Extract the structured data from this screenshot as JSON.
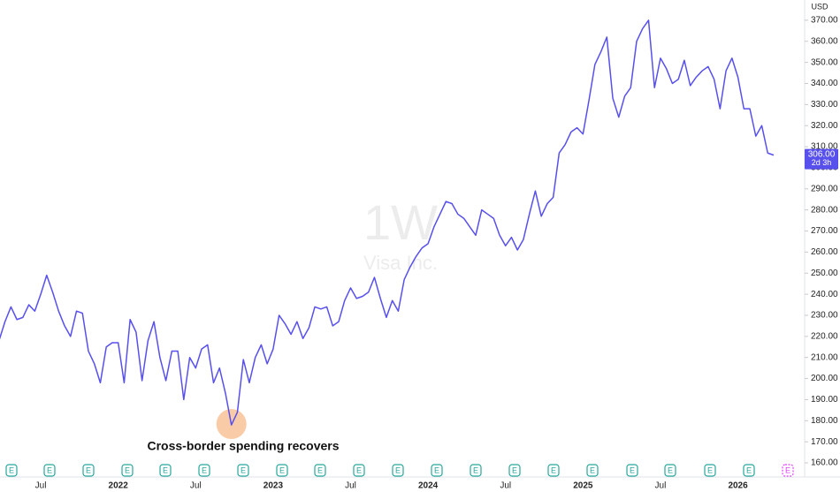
{
  "chart_data": {
    "type": "line",
    "title": "1W",
    "subtitle": "Visa Inc.",
    "currency": "USD",
    "annotation": "Cross-border spending recovers",
    "earnings_marker": "E",
    "price_tag": {
      "value": 306,
      "label": "306.00"
    },
    "countdown": "2d 3h",
    "categories": [
      null,
      null,
      null,
      null,
      null,
      null,
      null,
      "Jul",
      null,
      null,
      null,
      null,
      null,
      null,
      null,
      null,
      null,
      null,
      null,
      null,
      "2022",
      null,
      null,
      null,
      null,
      null,
      null,
      null,
      null,
      null,
      null,
      null,
      null,
      "Jul",
      null,
      null,
      null,
      null,
      null,
      null,
      null,
      null,
      null,
      null,
      null,
      null,
      "2023",
      null,
      null,
      null,
      null,
      null,
      null,
      null,
      null,
      null,
      null,
      null,
      null,
      "Jul",
      null,
      null,
      null,
      null,
      null,
      null,
      null,
      null,
      null,
      null,
      null,
      null,
      "2024",
      null,
      null,
      null,
      null,
      null,
      null,
      null,
      null,
      null,
      null,
      null,
      null,
      "Jul",
      null,
      null,
      null,
      null,
      null,
      null,
      null,
      null,
      null,
      null,
      null,
      null,
      "2025",
      null,
      null,
      null,
      null,
      null,
      null,
      null,
      null,
      null,
      null,
      null,
      null,
      "Jul",
      null,
      null,
      null,
      null,
      null,
      null,
      null,
      null,
      null,
      null,
      null,
      null,
      "2026",
      null,
      null,
      null,
      null,
      null,
      null
    ],
    "series": [
      {
        "name": "Visa Inc.",
        "color": "#5850ec",
        "values": [
          218,
          227,
          234,
          228,
          229,
          235,
          232,
          240,
          249,
          241,
          232,
          225,
          220,
          232,
          231,
          213,
          207,
          198,
          215,
          217,
          217,
          198,
          228,
          222,
          199,
          218,
          227,
          210,
          199,
          213,
          213,
          190,
          210,
          205,
          214,
          216,
          198,
          205,
          193,
          178,
          184,
          209,
          198,
          210,
          216,
          207,
          214,
          230,
          226,
          221,
          227,
          219,
          224,
          234,
          233,
          234,
          225,
          227,
          237,
          243,
          238,
          239,
          241,
          248,
          238,
          229,
          237,
          232,
          247,
          253,
          258,
          262,
          264,
          272,
          278,
          284,
          283,
          278,
          276,
          272,
          268,
          280,
          278,
          276,
          268,
          263,
          267,
          261,
          266,
          278,
          289,
          277,
          283,
          286,
          307,
          311,
          317,
          319,
          316,
          332,
          349,
          355,
          362,
          333,
          324,
          334,
          338,
          360,
          366,
          370,
          338,
          352,
          347,
          340,
          342,
          351,
          339,
          343,
          346,
          348,
          342,
          328,
          346,
          352,
          343,
          328,
          328,
          315,
          320,
          307,
          306
        ]
      }
    ],
    "ylim": [
      153.3,
      379.6
    ],
    "yticks": [
      {
        "value": 160,
        "label": "160.00"
      },
      {
        "value": 170,
        "label": "170.00"
      },
      {
        "value": 180,
        "label": "180.00"
      },
      {
        "value": 190,
        "label": "190.00"
      },
      {
        "value": 200,
        "label": "200.00"
      },
      {
        "value": 210,
        "label": "210.00"
      },
      {
        "value": 220,
        "label": "220.00"
      },
      {
        "value": 230,
        "label": "230.00"
      },
      {
        "value": 240,
        "label": "240.00"
      },
      {
        "value": 250,
        "label": "250.00"
      },
      {
        "value": 260,
        "label": "260.00"
      },
      {
        "value": 270,
        "label": "270.00"
      },
      {
        "value": 280,
        "label": "280.00"
      },
      {
        "value": 290,
        "label": "290.00"
      },
      {
        "value": 300,
        "label": "300.00"
      },
      {
        "value": 310,
        "label": "310.00"
      },
      {
        "value": 320,
        "label": "320.00"
      },
      {
        "value": 330,
        "label": "330.00"
      },
      {
        "value": 340,
        "label": "340.00"
      },
      {
        "value": 350,
        "label": "350.00"
      },
      {
        "value": 360,
        "label": "360.00"
      },
      {
        "value": 370,
        "label": "370.00"
      }
    ],
    "grid": false
  }
}
